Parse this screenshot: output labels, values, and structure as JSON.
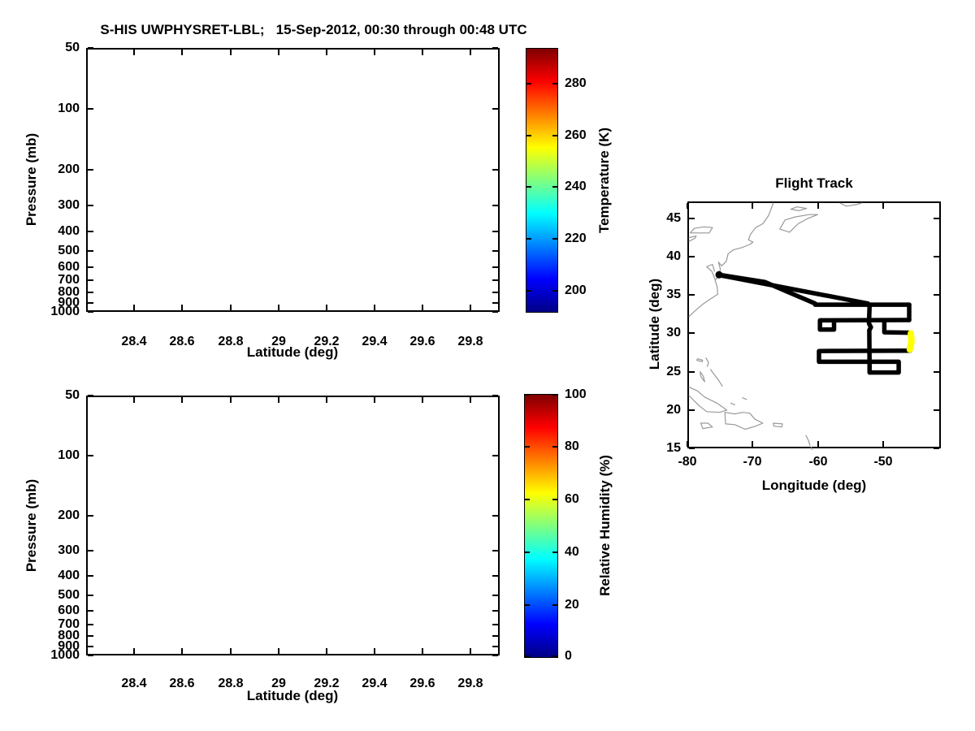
{
  "figure_title": "S-HIS UWPHYSRET-LBL;   15-Sep-2012, 00:30 through 00:48 UTC",
  "chart_data": [
    {
      "id": "temperature-cross-section",
      "type": "heatmap",
      "title": "S-HIS UWPHYSRET-LBL;   15-Sep-2012, 00:30 through 00:48 UTC",
      "xlabel": "Latitude (deg)",
      "ylabel": "Pressure (mb)",
      "xlim": [
        28.2,
        29.92
      ],
      "x_ticks": [
        28.4,
        28.6,
        28.8,
        29,
        29.2,
        29.4,
        29.6,
        29.8
      ],
      "y_scale": "log",
      "ylim": [
        50,
        1000
      ],
      "y_ticks": [
        50,
        100,
        200,
        300,
        400,
        500,
        600,
        700,
        800,
        900,
        1000
      ],
      "values": [],
      "plot_content": "empty (no retrieval data drawn)",
      "colorbar": {
        "label": "Temperature (K)",
        "colormap": "jet",
        "range": [
          191.6,
          293.7
        ],
        "ticks": [
          200,
          220,
          240,
          260,
          280
        ]
      }
    },
    {
      "id": "humidity-cross-section",
      "type": "heatmap",
      "title": "",
      "xlabel": "Latitude (deg)",
      "ylabel": "Pressure (mb)",
      "xlim": [
        28.2,
        29.92
      ],
      "x_ticks": [
        28.4,
        28.6,
        28.8,
        29,
        29.2,
        29.4,
        29.6,
        29.8
      ],
      "y_scale": "log",
      "ylim": [
        50,
        1000
      ],
      "y_ticks": [
        50,
        100,
        200,
        300,
        400,
        500,
        600,
        700,
        800,
        900,
        1000
      ],
      "values": [],
      "plot_content": "empty (no retrieval data drawn)",
      "colorbar": {
        "label": "Relative Humidity (%)",
        "colormap": "jet",
        "range": [
          0,
          100
        ],
        "ticks": [
          0,
          20,
          40,
          60,
          80,
          100
        ]
      }
    },
    {
      "id": "flight-track-map",
      "type": "line",
      "title": "Flight Track",
      "xlabel": "Longitude (deg)",
      "ylabel": "Latitude (deg)",
      "xlim": [
        -80,
        -41.2
      ],
      "ylim": [
        15,
        47.2
      ],
      "x_ticks": [
        -80,
        -70,
        -60,
        -50
      ],
      "y_ticks": [
        15,
        20,
        25,
        30,
        35,
        40,
        45
      ],
      "track_color": "#000000",
      "highlight_color": "#ffff00",
      "coast_color": "#999999",
      "start_point": [
        -75.4,
        37.85
      ],
      "track_segments": [
        {
          "name": "transit-outbound",
          "points": [
            [
              -75.4,
              37.85
            ],
            [
              -68.4,
              36.9
            ],
            [
              -64.7,
              35.55
            ],
            [
              -60.7,
              34.1
            ]
          ]
        },
        {
          "name": "transit-return",
          "points": [
            [
              -52.6,
              34.1
            ],
            [
              -75.4,
              37.8
            ]
          ]
        },
        {
          "name": "row-34N",
          "points": [
            [
              -60.7,
              33.95
            ],
            [
              -46.3,
              33.95
            ]
          ]
        },
        {
          "name": "east-turn-34-32",
          "points": [
            [
              -46.3,
              33.95
            ],
            [
              -46.3,
              31.95
            ]
          ]
        },
        {
          "name": "row-32N-west-box",
          "points": [
            [
              -46.3,
              31.95
            ],
            [
              -59.95,
              31.9
            ],
            [
              -59.95,
              30.7
            ],
            [
              -57.8,
              30.7
            ],
            [
              -57.8,
              31.9
            ]
          ]
        },
        {
          "name": "stub-30N",
          "points": [
            [
              -50.1,
              31.9
            ],
            [
              -50.1,
              30.35
            ],
            [
              -46.25,
              30.3
            ]
          ]
        },
        {
          "name": "rows-28-26-25N",
          "points": [
            [
              -46.15,
              27.95
            ],
            [
              -60.1,
              27.9
            ],
            [
              -60.1,
              26.5
            ],
            [
              -47.9,
              26.5
            ],
            [
              -47.9,
              25.1
            ],
            [
              -52.35,
              25.1
            ]
          ]
        },
        {
          "name": "long-meridional-leg",
          "points": [
            [
              -52.35,
              33.95
            ],
            [
              -52.45,
              31.5
            ],
            [
              -52.15,
              31.0
            ],
            [
              -52.4,
              30.6
            ],
            [
              -52.35,
              25.1
            ]
          ]
        }
      ],
      "highlight_segment": {
        "name": "current-leg-0030-0048UTC",
        "points": [
          [
            -46.05,
            30.2
          ],
          [
            -45.95,
            29.1
          ],
          [
            -46.2,
            28.1
          ]
        ]
      },
      "coastlines": [
        [
          [
            -67.1,
            47.2
          ],
          [
            -67.8,
            45.6
          ],
          [
            -68.7,
            44.5
          ],
          [
            -69.8,
            44.0
          ],
          [
            -70.6,
            43.1
          ],
          [
            -70.9,
            42.4
          ],
          [
            -70.2,
            42.1
          ],
          [
            -70.7,
            41.8
          ],
          [
            -71.9,
            41.4
          ],
          [
            -73.2,
            41.1
          ],
          [
            -74.0,
            40.6
          ],
          [
            -74.3,
            39.6
          ],
          [
            -75.0,
            39.0
          ],
          [
            -75.5,
            39.5
          ],
          [
            -75.2,
            38.6
          ],
          [
            -75.4,
            37.9
          ],
          [
            -76.0,
            37.1
          ],
          [
            -75.7,
            36.3
          ],
          [
            -75.6,
            35.3
          ],
          [
            -76.7,
            34.7
          ],
          [
            -77.9,
            34.0
          ],
          [
            -79.0,
            33.2
          ],
          [
            -80.0,
            32.4
          ]
        ],
        [
          [
            -76.0,
            37.2
          ],
          [
            -76.5,
            38.3
          ],
          [
            -77.3,
            38.9
          ],
          [
            -76.4,
            39.2
          ],
          [
            -76.1,
            38.3
          ]
        ],
        [
          [
            -66.1,
            43.8
          ],
          [
            -64.6,
            43.4
          ],
          [
            -63.3,
            44.5
          ],
          [
            -61.8,
            45.2
          ],
          [
            -60.3,
            45.7
          ],
          [
            -61.6,
            45.7
          ],
          [
            -63.7,
            45.4
          ],
          [
            -65.3,
            45.0
          ],
          [
            -66.1,
            43.8
          ]
        ],
        [
          [
            -64.4,
            46.4
          ],
          [
            -63.2,
            46.2
          ],
          [
            -62.0,
            46.5
          ],
          [
            -63.5,
            46.7
          ],
          [
            -64.4,
            46.4
          ]
        ],
        [
          [
            -56.9,
            47.2
          ],
          [
            -55.9,
            46.8
          ],
          [
            -54.4,
            47.0
          ],
          [
            -53.6,
            47.2
          ]
        ],
        [
          [
            -79.8,
            43.3
          ],
          [
            -78.3,
            43.3
          ],
          [
            -76.9,
            43.3
          ],
          [
            -76.4,
            44.0
          ],
          [
            -77.7,
            44.1
          ],
          [
            -79.2,
            43.9
          ],
          [
            -79.8,
            43.3
          ]
        ],
        [
          [
            -80.0,
            42.2
          ],
          [
            -79.1,
            42.6
          ],
          [
            -78.9,
            42.9
          ],
          [
            -80.0,
            42.7
          ]
        ],
        [
          [
            -80.0,
            23.2
          ],
          [
            -78.7,
            22.7
          ],
          [
            -77.6,
            21.9
          ],
          [
            -75.7,
            21.1
          ],
          [
            -74.2,
            20.2
          ],
          [
            -75.3,
            19.9
          ],
          [
            -77.3,
            20.0
          ],
          [
            -78.5,
            20.8
          ],
          [
            -80.0,
            22.1
          ]
        ],
        [
          [
            -74.5,
            19.9
          ],
          [
            -73.0,
            19.7
          ],
          [
            -71.8,
            19.9
          ],
          [
            -70.7,
            19.8
          ],
          [
            -69.9,
            19.0
          ],
          [
            -68.7,
            18.5
          ],
          [
            -69.8,
            18.1
          ],
          [
            -71.4,
            17.7
          ],
          [
            -73.0,
            18.3
          ],
          [
            -74.4,
            18.4
          ],
          [
            -74.5,
            19.9
          ]
        ],
        [
          [
            -78.2,
            18.5
          ],
          [
            -77.1,
            18.5
          ],
          [
            -76.4,
            18.0
          ],
          [
            -77.9,
            17.8
          ],
          [
            -78.2,
            18.5
          ]
        ],
        [
          [
            -67.1,
            18.5
          ],
          [
            -65.7,
            18.4
          ],
          [
            -65.8,
            18.0
          ],
          [
            -67.0,
            18.1
          ],
          [
            -67.1,
            18.5
          ]
        ],
        [
          [
            -78.3,
            25.2
          ],
          [
            -77.8,
            24.6
          ],
          [
            -77.6,
            23.9
          ],
          [
            -78.2,
            24.6
          ],
          [
            -78.3,
            25.2
          ]
        ],
        [
          [
            -78.8,
            26.7
          ],
          [
            -78.0,
            26.5
          ],
          [
            -77.9,
            26.7
          ],
          [
            -78.7,
            26.9
          ],
          [
            -78.8,
            26.7
          ]
        ],
        [
          [
            -77.4,
            27.0
          ],
          [
            -77.0,
            26.4
          ],
          [
            -77.2,
            25.9
          ]
        ],
        [
          [
            -76.7,
            25.5
          ],
          [
            -76.1,
            24.8
          ],
          [
            -75.4,
            24.0
          ],
          [
            -74.9,
            23.3
          ]
        ],
        [
          [
            -73.6,
            21.1
          ],
          [
            -73.0,
            20.9
          ]
        ],
        [
          [
            -71.8,
            21.8
          ],
          [
            -71.2,
            21.6
          ]
        ],
        [
          [
            -62.1,
            16.9
          ],
          [
            -61.7,
            16.2
          ],
          [
            -61.5,
            15.6
          ]
        ],
        [
          [
            -61.3,
            15.4
          ],
          [
            -61.2,
            15.05
          ]
        ]
      ]
    }
  ]
}
